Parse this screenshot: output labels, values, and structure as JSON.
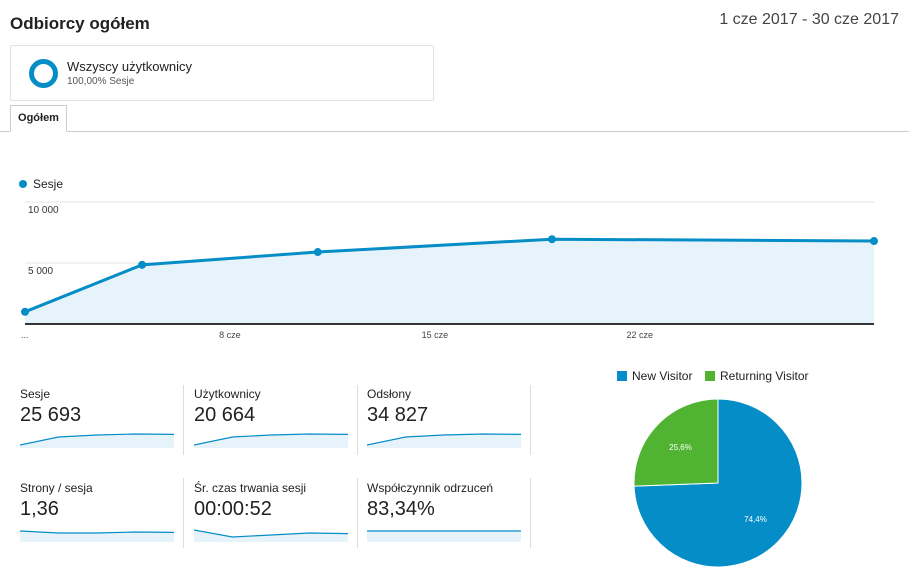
{
  "header": {
    "title": "Odbiorcy ogółem",
    "date_range": "1 cze 2017 - 30 cze 2017"
  },
  "segment": {
    "name": "Wszyscy użytkownicy",
    "sub": "100,00% Sesje",
    "icon": "donut-icon"
  },
  "tabs": [
    {
      "label": "Ogółem",
      "active": true
    }
  ],
  "colors": {
    "primary": "#058dc7",
    "secondary": "#50b432",
    "fill": "#e7f3fa"
  },
  "chart_data": {
    "type": "line",
    "series": [
      {
        "name": "Sesje",
        "x": [
          "1 cze",
          "5 cze",
          "11 cze",
          "19 cze",
          "30 cze"
        ],
        "values": [
          1000,
          4850,
          5900,
          6950,
          6800
        ]
      }
    ],
    "y_ticks": [
      {
        "label": "10 000",
        "value": 10000
      },
      {
        "label": "5 000",
        "value": 5000
      }
    ],
    "x_ticks": [
      "...",
      "8 cze",
      "15 cze",
      "22 cze"
    ],
    "ylim": [
      0,
      10000
    ],
    "legend": "top-left"
  },
  "metrics": [
    {
      "label": "Sesje",
      "value": "25 693",
      "spark": [
        0.15,
        0.55,
        0.65,
        0.7,
        0.68
      ]
    },
    {
      "label": "Użytkownicy",
      "value": "20 664",
      "spark": [
        0.15,
        0.55,
        0.65,
        0.7,
        0.68
      ]
    },
    {
      "label": "Odsłony",
      "value": "34 827",
      "spark": [
        0.15,
        0.55,
        0.65,
        0.7,
        0.68
      ]
    },
    {
      "label": "Strony / sesja",
      "value": "1,36",
      "spark": [
        0.55,
        0.45,
        0.45,
        0.5,
        0.48
      ]
    },
    {
      "label": "Śr. czas trwania sesji",
      "value": "00:00:52",
      "spark": [
        0.6,
        0.25,
        0.35,
        0.45,
        0.42
      ]
    },
    {
      "label": "Współczynnik odrzuceń",
      "value": "83,34%",
      "spark": [
        0.55,
        0.55,
        0.55,
        0.55,
        0.55
      ]
    }
  ],
  "pie": {
    "legend": [
      {
        "name": "New Visitor",
        "color": "#058dc7"
      },
      {
        "name": "Returning Visitor",
        "color": "#50b432"
      }
    ],
    "slices": [
      {
        "name": "New Visitor",
        "value": 74.4,
        "label": "74,4%"
      },
      {
        "name": "Returning Visitor",
        "value": 25.6,
        "label": "25,6%"
      }
    ]
  }
}
